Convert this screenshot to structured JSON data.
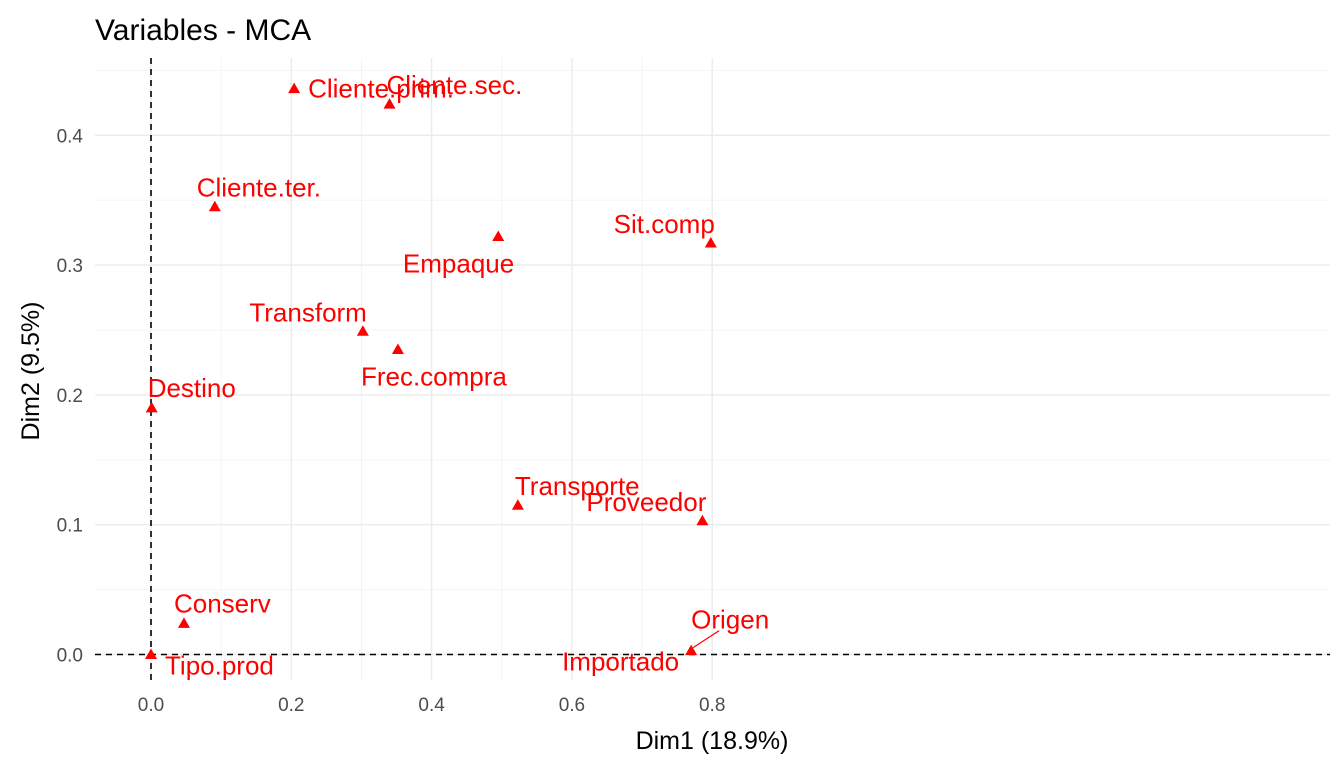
{
  "chart_data": {
    "type": "scatter",
    "title": "Variables - MCA",
    "xlabel": "Dim1 (18.9%)",
    "ylabel": "Dim2 (9.5%)",
    "xlim": [
      -0.04,
      0.84
    ],
    "ylim": [
      -0.02,
      0.46
    ],
    "x_ticks": [
      {
        "value": 0.0,
        "label": "0.0"
      },
      {
        "value": 0.2,
        "label": "0.2"
      },
      {
        "value": 0.4,
        "label": "0.4"
      },
      {
        "value": 0.6,
        "label": "0.6"
      },
      {
        "value": 0.8,
        "label": "0.8"
      }
    ],
    "y_ticks": [
      {
        "value": 0.0,
        "label": "0.0"
      },
      {
        "value": 0.1,
        "label": "0.1"
      },
      {
        "value": 0.2,
        "label": "0.2"
      },
      {
        "value": 0.3,
        "label": "0.3"
      },
      {
        "value": 0.4,
        "label": "0.4"
      }
    ],
    "grid": true,
    "reference_lines": [
      "x=0 dashed",
      "y=0 dashed"
    ],
    "marker": "triangle",
    "color": "#ff0000",
    "points": [
      {
        "label": "Cliente.prim.",
        "x": 0.204,
        "y": 0.436,
        "label_pos": "right"
      },
      {
        "label": "Cliente.sec.",
        "x": 0.34,
        "y": 0.424,
        "label_pos": "upper-right"
      },
      {
        "label": "Cliente.ter.",
        "x": 0.091,
        "y": 0.345,
        "label_pos": "above"
      },
      {
        "label": "Sit.comp",
        "x": 0.798,
        "y": 0.317,
        "label_pos": "upper-left"
      },
      {
        "label": "Empaque",
        "x": 0.495,
        "y": 0.322,
        "label_pos": "lower-left"
      },
      {
        "label": "Transform",
        "x": 0.302,
        "y": 0.249,
        "label_pos": "upper-left"
      },
      {
        "label": "Frec.compra",
        "x": 0.352,
        "y": 0.235,
        "label_pos": "below"
      },
      {
        "label": "Destino",
        "x": 0.001,
        "y": 0.19,
        "label_pos": "upper-right"
      },
      {
        "label": "Transporte",
        "x": 0.523,
        "y": 0.115,
        "label_pos": "upper-right"
      },
      {
        "label": "Proveedor",
        "x": 0.786,
        "y": 0.103,
        "label_pos": "upper-left"
      },
      {
        "label": "Conserv",
        "x": 0.047,
        "y": 0.024,
        "label_pos": "upper-right"
      },
      {
        "label": "Tipo.prod",
        "x": 0.0,
        "y": 0.0,
        "label_pos": "lower-right"
      },
      {
        "label": "Origen",
        "x": 0.77,
        "y": 0.003,
        "label_pos": "upper-right"
      },
      {
        "label": "Importado",
        "x": 0.77,
        "y": 0.003,
        "label_pos": "lower-left"
      }
    ]
  }
}
